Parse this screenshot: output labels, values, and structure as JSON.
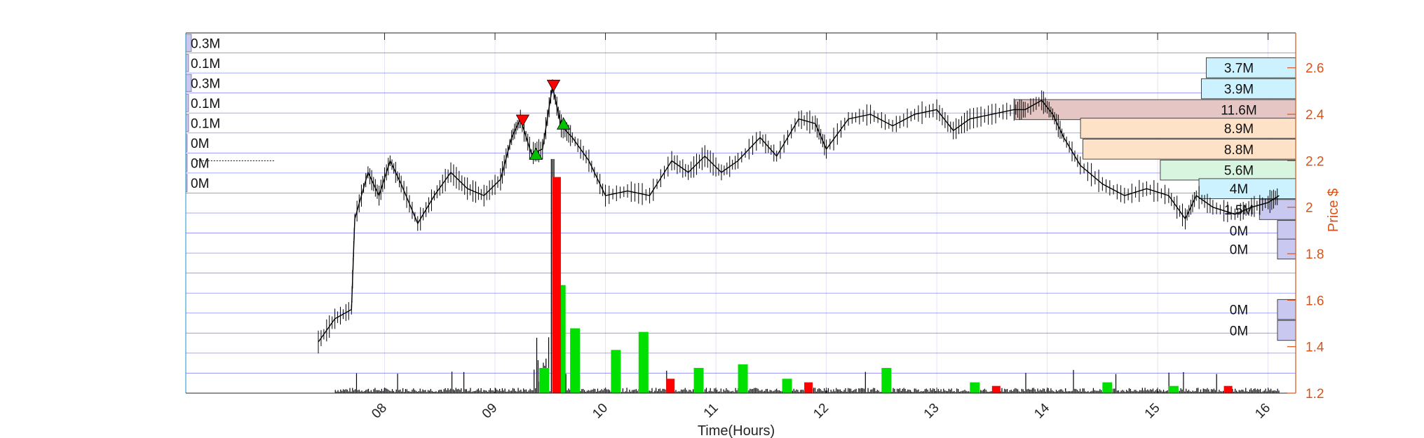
{
  "chart_data": {
    "type": "line",
    "title": "",
    "xlabel": "Time(Hours)",
    "ylabel": "Price $",
    "x_range_hours": [
      6.2,
      16.25
    ],
    "ylim": [
      1.2,
      2.75
    ],
    "x_ticks": [
      "08",
      "09",
      "10",
      "11",
      "12",
      "13",
      "14",
      "15",
      "16"
    ],
    "x_tick_values": [
      8,
      9,
      10,
      11,
      12,
      13,
      14,
      15,
      16
    ],
    "y_ticks": [
      "1.2",
      "1.4",
      "1.6",
      "1.8",
      "2",
      "2.2",
      "2.4",
      "2.6"
    ],
    "y_tick_values": [
      1.2,
      1.4,
      1.6,
      1.8,
      2.0,
      2.2,
      2.4,
      2.6
    ],
    "price_series": [
      {
        "x": 7.4,
        "y": 1.42
      },
      {
        "x": 7.55,
        "y": 1.52
      },
      {
        "x": 7.7,
        "y": 1.56
      },
      {
        "x": 7.73,
        "y": 1.95
      },
      {
        "x": 7.85,
        "y": 2.15
      },
      {
        "x": 7.95,
        "y": 2.05
      },
      {
        "x": 8.05,
        "y": 2.2
      },
      {
        "x": 8.15,
        "y": 2.1
      },
      {
        "x": 8.3,
        "y": 1.93
      },
      {
        "x": 8.45,
        "y": 2.05
      },
      {
        "x": 8.6,
        "y": 2.15
      },
      {
        "x": 8.75,
        "y": 2.08
      },
      {
        "x": 8.9,
        "y": 2.05
      },
      {
        "x": 9.05,
        "y": 2.12
      },
      {
        "x": 9.15,
        "y": 2.3
      },
      {
        "x": 9.23,
        "y": 2.38
      },
      {
        "x": 9.33,
        "y": 2.23
      },
      {
        "x": 9.43,
        "y": 2.25
      },
      {
        "x": 9.52,
        "y": 2.52
      },
      {
        "x": 9.6,
        "y": 2.35
      },
      {
        "x": 9.7,
        "y": 2.3
      },
      {
        "x": 9.85,
        "y": 2.2
      },
      {
        "x": 10.0,
        "y": 2.05
      },
      {
        "x": 10.2,
        "y": 2.07
      },
      {
        "x": 10.4,
        "y": 2.05
      },
      {
        "x": 10.6,
        "y": 2.2
      },
      {
        "x": 10.75,
        "y": 2.15
      },
      {
        "x": 10.9,
        "y": 2.22
      },
      {
        "x": 11.05,
        "y": 2.15
      },
      {
        "x": 11.2,
        "y": 2.2
      },
      {
        "x": 11.4,
        "y": 2.3
      },
      {
        "x": 11.55,
        "y": 2.22
      },
      {
        "x": 11.75,
        "y": 2.38
      },
      {
        "x": 11.9,
        "y": 2.36
      },
      {
        "x": 12.0,
        "y": 2.25
      },
      {
        "x": 12.2,
        "y": 2.38
      },
      {
        "x": 12.4,
        "y": 2.4
      },
      {
        "x": 12.6,
        "y": 2.35
      },
      {
        "x": 12.8,
        "y": 2.4
      },
      {
        "x": 13.0,
        "y": 2.42
      },
      {
        "x": 13.15,
        "y": 2.33
      },
      {
        "x": 13.3,
        "y": 2.38
      },
      {
        "x": 13.5,
        "y": 2.4
      },
      {
        "x": 13.7,
        "y": 2.42
      },
      {
        "x": 13.8,
        "y": 2.42
      },
      {
        "x": 13.95,
        "y": 2.46
      },
      {
        "x": 14.05,
        "y": 2.4
      },
      {
        "x": 14.15,
        "y": 2.3
      },
      {
        "x": 14.3,
        "y": 2.18
      },
      {
        "x": 14.5,
        "y": 2.1
      },
      {
        "x": 14.7,
        "y": 2.05
      },
      {
        "x": 14.9,
        "y": 2.08
      },
      {
        "x": 15.1,
        "y": 2.05
      },
      {
        "x": 15.25,
        "y": 1.95
      },
      {
        "x": 15.35,
        "y": 2.05
      },
      {
        "x": 15.5,
        "y": 2.0
      },
      {
        "x": 15.7,
        "y": 1.97
      },
      {
        "x": 15.85,
        "y": 2.0
      },
      {
        "x": 16.0,
        "y": 2.02
      },
      {
        "x": 16.1,
        "y": 2.05
      }
    ],
    "signals": [
      {
        "type": "sell",
        "x": 9.25,
        "y": 2.37,
        "color": "#ff0000"
      },
      {
        "type": "buy",
        "x": 9.37,
        "y": 2.23,
        "color": "#00c000"
      },
      {
        "type": "sell",
        "x": 9.53,
        "y": 2.52,
        "color": "#ff0000"
      },
      {
        "type": "buy",
        "x": 9.62,
        "y": 2.36,
        "color": "#00c000"
      }
    ],
    "volume_profile": [
      {
        "price": 2.6,
        "label": "3.7M",
        "value": 3.7,
        "color": "#ccf2ff"
      },
      {
        "price": 2.51,
        "label": "3.9M",
        "value": 3.9,
        "color": "#ccf2ff"
      },
      {
        "price": 2.42,
        "label": "11.6M",
        "value": 11.6,
        "color": "#e6c6c4"
      },
      {
        "price": 2.34,
        "label": "8.9M",
        "value": 8.9,
        "color": "#fde2c8"
      },
      {
        "price": 2.25,
        "label": "8.8M",
        "value": 8.8,
        "color": "#fde2c8"
      },
      {
        "price": 2.16,
        "label": "5.6M",
        "value": 5.6,
        "color": "#d8f5df"
      },
      {
        "price": 2.08,
        "label": "4M",
        "value": 4.0,
        "color": "#ccf2ff"
      },
      {
        "price": 1.99,
        "label": "1.5M",
        "value": 1.5,
        "color": "#c8c8f0"
      },
      {
        "price": 1.9,
        "label": "0M",
        "value": 0.02,
        "color": "#c8c8f0"
      },
      {
        "price": 1.82,
        "label": "0M",
        "value": 0.02,
        "color": "#c8c8f0"
      },
      {
        "price": 1.56,
        "label": "0M",
        "value": 0.02,
        "color": "#c8c8f0"
      },
      {
        "price": 1.47,
        "label": "0M",
        "value": 0.02,
        "color": "#c8c8f0"
      }
    ],
    "left_profile": [
      {
        "label": "0.3M",
        "value": 0.3
      },
      {
        "label": "0.1M",
        "value": 0.1
      },
      {
        "label": "0.3M",
        "value": 0.3
      },
      {
        "label": "0.1M",
        "value": 0.1
      },
      {
        "label": "0.1M",
        "value": 0.1
      },
      {
        "label": "0M",
        "value": 0.0
      },
      {
        "label": "0M",
        "value": 0.0
      },
      {
        "label": "0M",
        "value": 0.0
      }
    ],
    "volume_bars_green": [
      {
        "x": 9.4,
        "h": 0.07
      },
      {
        "x": 9.55,
        "h": 0.3
      },
      {
        "x": 9.68,
        "h": 0.18
      },
      {
        "x": 10.05,
        "h": 0.12
      },
      {
        "x": 10.3,
        "h": 0.17
      },
      {
        "x": 10.8,
        "h": 0.07
      },
      {
        "x": 11.2,
        "h": 0.08
      },
      {
        "x": 11.6,
        "h": 0.04
      },
      {
        "x": 12.5,
        "h": 0.07
      },
      {
        "x": 13.3,
        "h": 0.03
      },
      {
        "x": 14.5,
        "h": 0.03
      },
      {
        "x": 15.1,
        "h": 0.02
      }
    ],
    "volume_bars_red": [
      {
        "x": 9.52,
        "h": 0.6
      },
      {
        "x": 10.55,
        "h": 0.04
      },
      {
        "x": 11.8,
        "h": 0.03
      },
      {
        "x": 13.5,
        "h": 0.02
      },
      {
        "x": 15.6,
        "h": 0.02
      }
    ],
    "colors": {
      "price_axis": "#d95319",
      "grid": "#0000ff",
      "volume_green": "#00e000",
      "volume_red": "#ff0000",
      "volume_black": "#000000"
    }
  }
}
